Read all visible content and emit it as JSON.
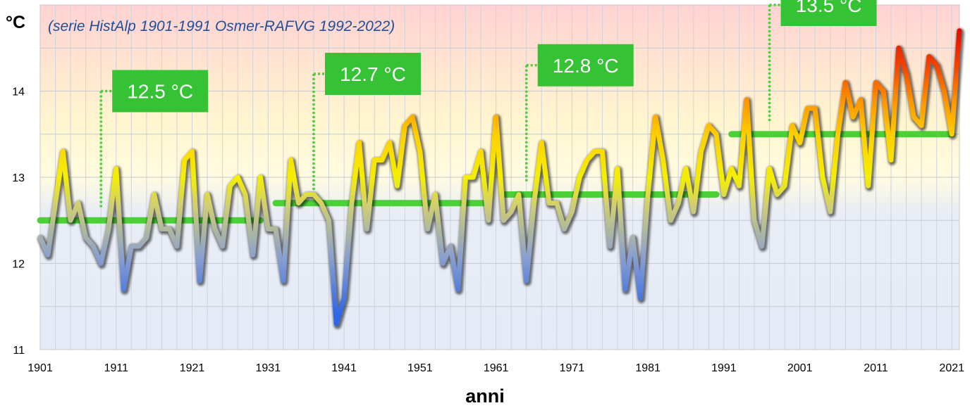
{
  "chart_data": {
    "type": "line",
    "subtitle": "(serie HistAlp 1901-1991 Osmer-RAFVG 1992-2022)",
    "ylabel": "°C",
    "xlabel": "anni",
    "xlim": [
      1901,
      2022
    ],
    "ylim": [
      11,
      15
    ],
    "x_ticks": [
      "1901",
      "1911",
      "1921",
      "1931",
      "1941",
      "1951",
      "1961",
      "1971",
      "1981",
      "1991",
      "2001",
      "2011",
      "2021"
    ],
    "y_ticks": [
      "11",
      "12",
      "13",
      "14"
    ],
    "grid": true,
    "colors": {
      "cold": "#3a6fd8",
      "mid": "#f5f000",
      "warm": "#e02000",
      "average_line": "#4cd038",
      "label_box": "#35c235"
    },
    "series": [
      {
        "x_start": 1901,
        "values": [
          12.3,
          12.1,
          12.7,
          13.3,
          12.5,
          12.7,
          12.3,
          12.2,
          12.0,
          12.4,
          13.1,
          11.7,
          12.2,
          12.2,
          12.3,
          12.8,
          12.4,
          12.4,
          12.2,
          13.2,
          13.3,
          11.8,
          12.8,
          12.4,
          12.2,
          12.9,
          13.0,
          12.8,
          12.1,
          13.0,
          12.4,
          12.4,
          11.8,
          13.2,
          12.7,
          12.8,
          12.8,
          12.7,
          12.5,
          11.3,
          11.6,
          12.7,
          13.4,
          12.4,
          13.2,
          13.2,
          13.4,
          12.9,
          13.6,
          13.7,
          13.3,
          12.4,
          12.8,
          12.0,
          12.2,
          11.7,
          13.0,
          13.0,
          13.3,
          12.5,
          13.7,
          12.5,
          12.6,
          12.8,
          11.8,
          12.7,
          13.4,
          12.7,
          12.7,
          12.4,
          12.6,
          13.0,
          13.2,
          13.3,
          13.3,
          12.2,
          13.1,
          11.7,
          12.3,
          11.6,
          12.8,
          13.7,
          13.2,
          12.5,
          12.7,
          13.1,
          12.6,
          13.3,
          13.6,
          13.5,
          12.8,
          13.1,
          12.9,
          13.9,
          12.5,
          12.2,
          13.1,
          12.8,
          12.9,
          13.6,
          13.4,
          13.8,
          13.8,
          13.0,
          12.6,
          13.5,
          14.1,
          13.7,
          13.9,
          12.9,
          14.1,
          14.0,
          13.2,
          14.5,
          14.2,
          13.7,
          13.6,
          14.4,
          14.3,
          14.0,
          13.5,
          14.7
        ]
      }
    ],
    "averages": [
      {
        "label": "12.5 °C",
        "value": 12.5,
        "x_from": 1901,
        "x_to": 1930,
        "callout_x": 1909
      },
      {
        "label": "12.7 °C",
        "value": 12.7,
        "x_from": 1932,
        "x_to": 1960,
        "callout_x": 1937
      },
      {
        "label": "12.8 °C",
        "value": 12.8,
        "x_from": 1962,
        "x_to": 1990,
        "callout_x": 1965
      },
      {
        "label": "13.5 °C",
        "value": 13.5,
        "x_from": 1992,
        "x_to": 2021,
        "callout_x": 1997
      }
    ]
  }
}
